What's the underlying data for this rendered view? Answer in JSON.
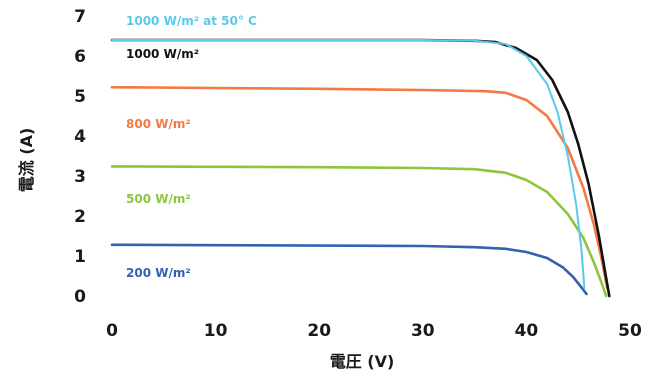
{
  "chart_data": {
    "type": "line",
    "xlabel": "電圧 (V)",
    "ylabel": "電流 (A)",
    "xlim": [
      0,
      50
    ],
    "ylim": [
      0,
      7
    ],
    "xticks": [
      "0",
      "10",
      "20",
      "30",
      "40",
      "50"
    ],
    "yticks": [
      "0",
      "1",
      "2",
      "3",
      "4",
      "5",
      "6",
      "7"
    ],
    "grid": false,
    "series": [
      {
        "name": "1000 W/m² at 50° C",
        "color": "#5bc8ee",
        "points": [
          [
            0,
            6.4
          ],
          [
            10,
            6.4
          ],
          [
            20,
            6.4
          ],
          [
            30,
            6.4
          ],
          [
            35,
            6.38
          ],
          [
            38,
            6.3
          ],
          [
            40,
            6.0
          ],
          [
            42,
            5.3
          ],
          [
            43,
            4.6
          ],
          [
            44,
            3.5
          ],
          [
            44.8,
            2.3
          ],
          [
            45.3,
            1.2
          ],
          [
            45.6,
            0.2
          ]
        ]
      },
      {
        "name": "1000 W/m²",
        "color": "#111111",
        "points": [
          [
            0,
            6.4
          ],
          [
            10,
            6.4
          ],
          [
            20,
            6.4
          ],
          [
            30,
            6.4
          ],
          [
            35,
            6.38
          ],
          [
            37,
            6.35
          ],
          [
            39,
            6.2
          ],
          [
            41,
            5.9
          ],
          [
            42.5,
            5.4
          ],
          [
            44,
            4.6
          ],
          [
            45,
            3.8
          ],
          [
            46,
            2.8
          ],
          [
            47,
            1.5
          ],
          [
            47.6,
            0.6
          ],
          [
            48,
            0
          ]
        ]
      },
      {
        "name": "800 W/m²",
        "color": "#f47a45",
        "points": [
          [
            0,
            5.22
          ],
          [
            10,
            5.2
          ],
          [
            20,
            5.18
          ],
          [
            30,
            5.15
          ],
          [
            36,
            5.12
          ],
          [
            38,
            5.08
          ],
          [
            40,
            4.9
          ],
          [
            42,
            4.5
          ],
          [
            44,
            3.7
          ],
          [
            45.5,
            2.7
          ],
          [
            46.5,
            1.8
          ],
          [
            47.2,
            1.0
          ],
          [
            47.8,
            0.2
          ]
        ]
      },
      {
        "name": "500 W/m²",
        "color": "#8cc63f",
        "points": [
          [
            0,
            3.24
          ],
          [
            10,
            3.23
          ],
          [
            20,
            3.22
          ],
          [
            30,
            3.2
          ],
          [
            35,
            3.17
          ],
          [
            38,
            3.08
          ],
          [
            40,
            2.9
          ],
          [
            42,
            2.6
          ],
          [
            44,
            2.05
          ],
          [
            45.5,
            1.45
          ],
          [
            46.5,
            0.85
          ],
          [
            47.3,
            0.3
          ],
          [
            47.7,
            0
          ]
        ]
      },
      {
        "name": "200 W/m²",
        "color": "#3362b0",
        "points": [
          [
            0,
            1.28
          ],
          [
            10,
            1.27
          ],
          [
            20,
            1.26
          ],
          [
            30,
            1.25
          ],
          [
            35,
            1.22
          ],
          [
            38,
            1.18
          ],
          [
            40,
            1.1
          ],
          [
            42,
            0.95
          ],
          [
            43.5,
            0.72
          ],
          [
            44.5,
            0.48
          ],
          [
            45.3,
            0.22
          ],
          [
            45.8,
            0.05
          ]
        ]
      }
    ]
  }
}
